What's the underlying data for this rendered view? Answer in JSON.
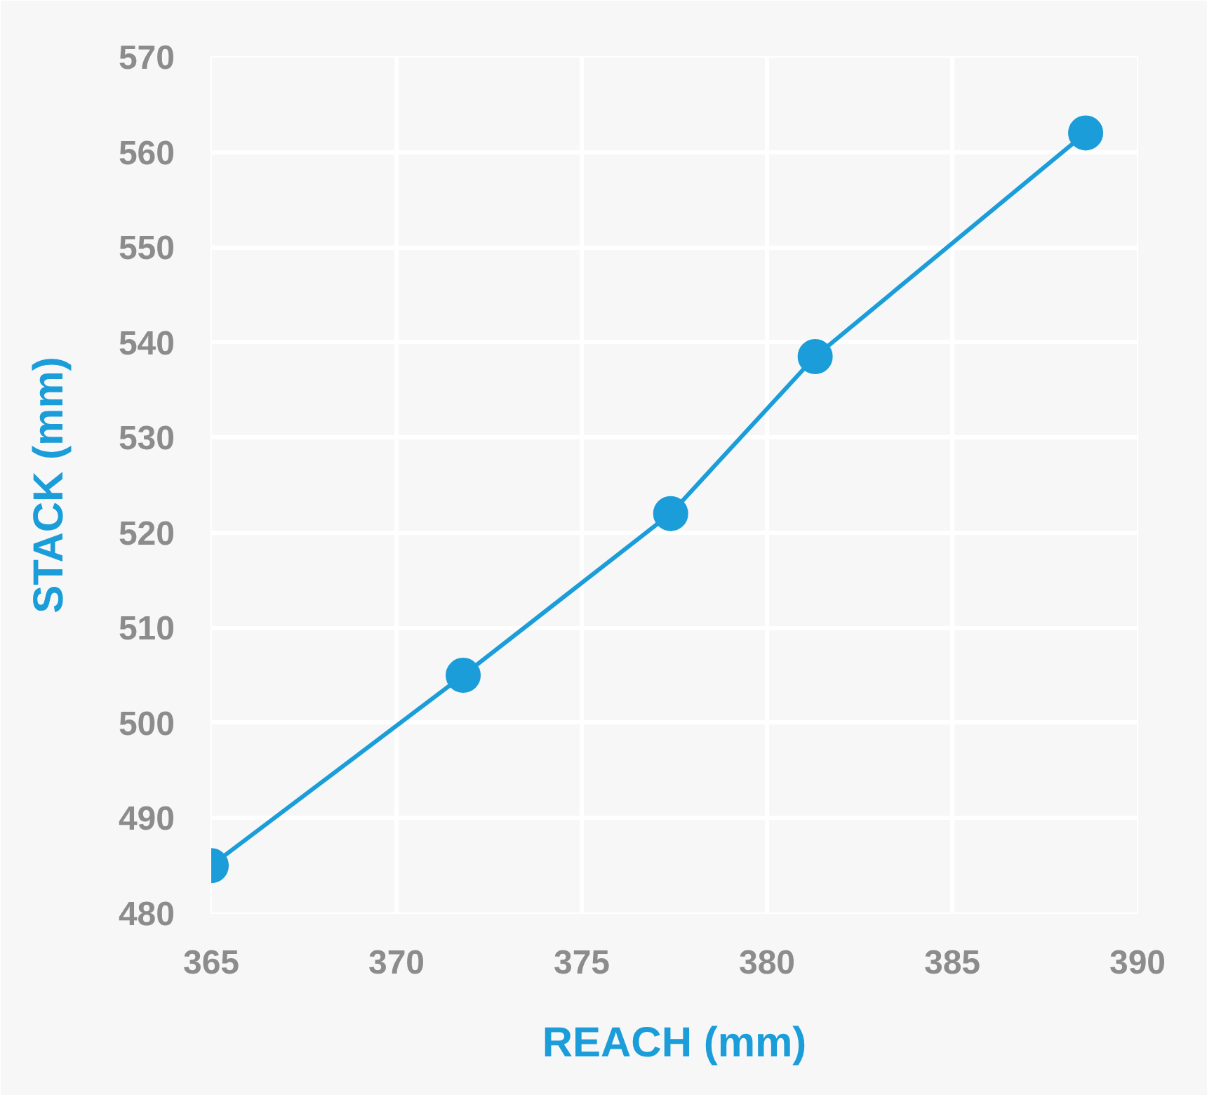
{
  "chart_data": {
    "type": "line",
    "xlabel": "REACH (mm)",
    "ylabel": "STACK (mm)",
    "x": [
      365.0,
      371.8,
      377.4,
      381.3,
      388.6
    ],
    "series": [
      {
        "color": "#1a9dd9",
        "values": [
          485,
          505,
          522,
          538.5,
          562
        ]
      }
    ],
    "xlim": [
      365,
      390
    ],
    "xticks": [
      365,
      370,
      375,
      380,
      385,
      390
    ],
    "ylim": [
      480,
      570
    ],
    "yticks": [
      480,
      490,
      500,
      510,
      520,
      530,
      540,
      550,
      560,
      570
    ],
    "grid": true,
    "marker": "circle",
    "line_style": "solid"
  }
}
